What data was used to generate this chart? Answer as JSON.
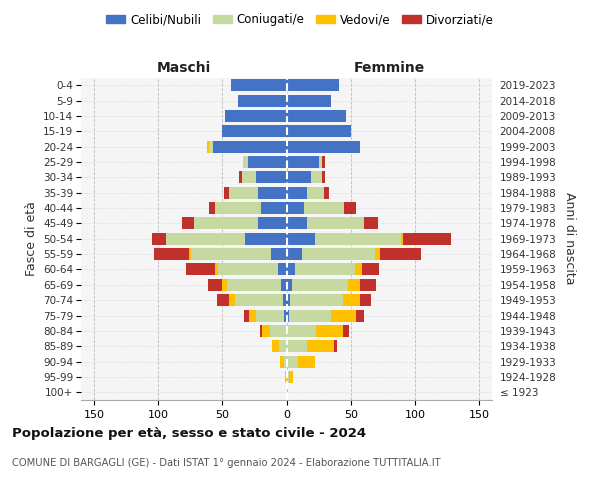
{
  "age_groups": [
    "100+",
    "95-99",
    "90-94",
    "85-89",
    "80-84",
    "75-79",
    "70-74",
    "65-69",
    "60-64",
    "55-59",
    "50-54",
    "45-49",
    "40-44",
    "35-39",
    "30-34",
    "25-29",
    "20-24",
    "15-19",
    "10-14",
    "5-9",
    "0-4"
  ],
  "birth_years": [
    "≤ 1923",
    "1924-1928",
    "1929-1933",
    "1934-1938",
    "1939-1943",
    "1944-1948",
    "1949-1953",
    "1954-1958",
    "1959-1963",
    "1964-1968",
    "1969-1973",
    "1974-1978",
    "1979-1983",
    "1984-1988",
    "1989-1993",
    "1994-1998",
    "1999-2003",
    "2004-2008",
    "2009-2013",
    "2014-2018",
    "2019-2023"
  ],
  "male_celibi": [
    0,
    0,
    0,
    0,
    0,
    2,
    3,
    4,
    7,
    12,
    32,
    22,
    20,
    22,
    24,
    30,
    57,
    50,
    48,
    38,
    43
  ],
  "male_coniugati": [
    0,
    0,
    2,
    6,
    13,
    22,
    37,
    42,
    46,
    62,
    62,
    50,
    36,
    23,
    11,
    4,
    3,
    0,
    0,
    0,
    0
  ],
  "male_vedovi": [
    0,
    1,
    3,
    5,
    6,
    5,
    5,
    4,
    3,
    2,
    0,
    0,
    0,
    0,
    0,
    0,
    2,
    0,
    0,
    0,
    0
  ],
  "male_divorziati": [
    0,
    0,
    0,
    0,
    2,
    4,
    9,
    11,
    22,
    27,
    11,
    9,
    4,
    4,
    2,
    0,
    0,
    0,
    0,
    0,
    0
  ],
  "female_nubili": [
    0,
    0,
    0,
    0,
    0,
    2,
    3,
    4,
    7,
    12,
    22,
    16,
    14,
    16,
    19,
    25,
    57,
    50,
    46,
    35,
    41
  ],
  "female_coniugate": [
    0,
    2,
    9,
    16,
    23,
    33,
    41,
    44,
    46,
    57,
    67,
    44,
    31,
    13,
    9,
    3,
    0,
    0,
    0,
    0,
    0
  ],
  "female_vedove": [
    1,
    3,
    13,
    21,
    21,
    19,
    13,
    9,
    6,
    4,
    2,
    0,
    0,
    0,
    0,
    0,
    0,
    0,
    0,
    0,
    0
  ],
  "female_divorziate": [
    0,
    0,
    0,
    2,
    5,
    6,
    9,
    13,
    13,
    32,
    37,
    11,
    9,
    4,
    2,
    2,
    0,
    0,
    0,
    0,
    0
  ],
  "color_celibi": "#4472c4",
  "color_coniugati": "#c5d9a0",
  "color_vedovi": "#ffc000",
  "color_divorziati": "#c0312c",
  "title": "Popolazione per età, sesso e stato civile - 2024",
  "subtitle": "COMUNE DI BARGAGLI (GE) - Dati ISTAT 1° gennaio 2024 - Elaborazione TUTTITALIA.IT",
  "legend_labels": [
    "Celibi/Nubili",
    "Coniugati/e",
    "Vedovi/e",
    "Divorziati/e"
  ],
  "label_maschi": "Maschi",
  "label_femmine": "Femmine",
  "label_fasce": "Fasce di età",
  "label_anni": "Anni di nascita",
  "xlim": 160,
  "bg_color": "#f5f5f5",
  "grid_color_x": "#bbbbbb",
  "grid_color_y": "#cccccc"
}
